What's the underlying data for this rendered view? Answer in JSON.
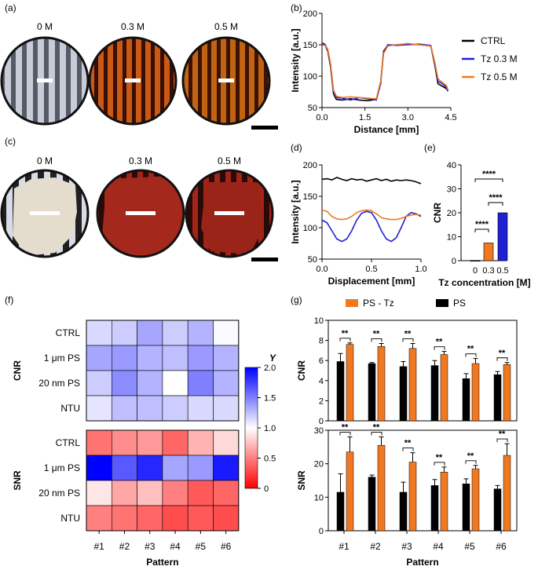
{
  "panels": {
    "a": {
      "label": "(a)",
      "disc_labels": [
        "0 M",
        "0.3 M",
        "0.5 M"
      ]
    },
    "b": {
      "label": "(b)"
    },
    "c": {
      "label": "(c)",
      "disc_labels": [
        "0 M",
        "0.3 M",
        "0.5 M"
      ]
    },
    "d": {
      "label": "(d)"
    },
    "e": {
      "label": "(e)"
    },
    "f": {
      "label": "(f)"
    },
    "g": {
      "label": "(g)"
    }
  },
  "colors": {
    "ctrl": "#000000",
    "tz03": "#1f1fd6",
    "tz05": "#f07820",
    "ps": "#000000",
    "pstz": "#f07820"
  },
  "chart_data": [
    {
      "id": "b",
      "type": "line",
      "xlabel": "Distance [mm]",
      "ylabel": "Intensity [a.u.]",
      "xlim": [
        0,
        4.5
      ],
      "ylim": [
        50,
        200
      ],
      "xticks": [
        "0.0",
        "1.5",
        "3.0",
        "4.5"
      ],
      "yticks": [
        "50",
        "100",
        "150",
        "200"
      ],
      "x": [
        0,
        0.1,
        0.2,
        0.3,
        0.4,
        0.5,
        0.7,
        1.0,
        1.3,
        1.6,
        1.9,
        2.05,
        2.15,
        2.3,
        2.6,
        3.0,
        3.4,
        3.8,
        3.95,
        4.05,
        4.2,
        4.35,
        4.4
      ],
      "series": [
        {
          "name": "CTRL",
          "values": [
            152,
            150,
            140,
            115,
            72,
            63,
            62,
            64,
            62,
            61,
            63,
            90,
            140,
            149,
            150,
            151,
            150,
            148,
            115,
            88,
            84,
            80,
            76
          ]
        },
        {
          "name": "Tz 0.3 M",
          "values": [
            153,
            151,
            142,
            118,
            75,
            66,
            65,
            62,
            66,
            64,
            62,
            88,
            138,
            150,
            149,
            150,
            151,
            149,
            118,
            92,
            88,
            82,
            76
          ]
        },
        {
          "name": "Tz 0.5 M",
          "values": [
            150,
            149,
            143,
            120,
            78,
            68,
            66,
            67,
            66,
            65,
            64,
            92,
            136,
            148,
            150,
            152,
            150,
            148,
            120,
            96,
            90,
            85,
            78
          ]
        }
      ],
      "legend": [
        "CTRL",
        "Tz 0.3 M",
        "Tz 0.5 M"
      ]
    },
    {
      "id": "d",
      "type": "line",
      "xlabel": "Displacement [mm]",
      "ylabel": "Intensity [a.u.]",
      "xlim": [
        0,
        1
      ],
      "ylim": [
        50,
        200
      ],
      "xticks": [
        "0.0",
        "0.5",
        "1.0"
      ],
      "yticks": [
        "50",
        "100",
        "150",
        "200"
      ],
      "x": [
        0,
        0.05,
        0.1,
        0.15,
        0.2,
        0.25,
        0.3,
        0.35,
        0.4,
        0.45,
        0.5,
        0.55,
        0.6,
        0.65,
        0.7,
        0.75,
        0.8,
        0.85,
        0.9,
        0.95,
        1.0
      ],
      "series": [
        {
          "name": "CTRL",
          "values": [
            177,
            178,
            176,
            180,
            177,
            175,
            178,
            176,
            177,
            174,
            176,
            178,
            175,
            177,
            174,
            176,
            175,
            176,
            175,
            173,
            170
          ]
        },
        {
          "name": "Tz 0.3 M",
          "values": [
            112,
            108,
            95,
            82,
            78,
            82,
            95,
            112,
            123,
            126,
            124,
            112,
            95,
            82,
            78,
            84,
            100,
            118,
            124,
            122,
            118
          ]
        },
        {
          "name": "Tz 0.5 M",
          "values": [
            128,
            126,
            118,
            114,
            113,
            114,
            118,
            124,
            127,
            128,
            127,
            122,
            116,
            114,
            113,
            113,
            115,
            118,
            120,
            121,
            120
          ]
        }
      ]
    },
    {
      "id": "e",
      "type": "bar",
      "xlabel": "Tz concentration [M]",
      "ylabel": "CNR",
      "ylim": [
        0,
        40
      ],
      "yticks": [
        "0",
        "10",
        "20",
        "30",
        "40"
      ],
      "categories": [
        "0",
        "0.3",
        "0.5"
      ],
      "values": [
        0.1,
        7.4,
        20
      ],
      "annotations": [
        "****",
        "****",
        "****"
      ]
    },
    {
      "id": "f",
      "type": "heatmap",
      "xlabel": "Pattern",
      "xticks": [
        "#1",
        "#2",
        "#3",
        "#4",
        "#5",
        "#6"
      ],
      "colorbar_title": "Y",
      "colorbar_ticks": [
        "0",
        "0.5",
        "1.0",
        "1.5",
        "2.0"
      ],
      "colorbar_range": [
        0,
        2
      ],
      "cnr": {
        "ylabel": "CNR",
        "rows": [
          "CTRL",
          "1 μm PS",
          "20 nm PS",
          "NTU"
        ],
        "values": [
          [
            1.15,
            1.2,
            1.35,
            1.2,
            1.3,
            1.02
          ],
          [
            1.35,
            1.4,
            1.3,
            1.25,
            1.4,
            1.3
          ],
          [
            1.2,
            1.45,
            1.3,
            1.0,
            1.5,
            1.3
          ],
          [
            1.1,
            1.25,
            1.25,
            1.2,
            1.15,
            1.15
          ]
        ]
      },
      "snr": {
        "ylabel": "SNR",
        "rows": [
          "CTRL",
          "1 μm PS",
          "20 nm PS",
          "NTU"
        ],
        "values": [
          [
            0.45,
            0.55,
            0.6,
            0.4,
            0.7,
            0.85
          ],
          [
            2.0,
            1.65,
            1.85,
            1.35,
            1.4,
            1.9
          ],
          [
            0.9,
            0.65,
            0.75,
            0.5,
            0.35,
            0.4
          ],
          [
            0.5,
            0.45,
            0.4,
            0.3,
            0.35,
            0.3
          ]
        ]
      }
    },
    {
      "id": "g",
      "type": "bar",
      "xlabel": "Pattern",
      "categories": [
        "#1",
        "#2",
        "#3",
        "#4",
        "#5",
        "#6"
      ],
      "legend": [
        "PS - Tz",
        "PS"
      ],
      "cnr": {
        "ylabel": "CNR",
        "ylim": [
          0,
          10
        ],
        "yticks": [
          "0",
          "2",
          "4",
          "6",
          "8",
          "10"
        ],
        "series": [
          {
            "name": "PS",
            "values": [
              5.9,
              5.7,
              5.4,
              5.5,
              4.2,
              4.6
            ],
            "errors": [
              0.8,
              0.1,
              0.5,
              0.5,
              0.5,
              0.3
            ]
          },
          {
            "name": "PS - Tz",
            "values": [
              7.6,
              7.4,
              7.2,
              6.6,
              5.7,
              5.6
            ],
            "errors": [
              0.15,
              0.3,
              0.5,
              0.3,
              0.5,
              0.2
            ]
          }
        ],
        "annotations": [
          "**",
          "**",
          "**",
          "**",
          "**",
          "**"
        ]
      },
      "snr": {
        "ylabel": "SNR",
        "ylim": [
          0,
          30
        ],
        "yticks": [
          "0",
          "10",
          "20",
          "30"
        ],
        "series": [
          {
            "name": "PS",
            "values": [
              11.5,
              16,
              11.5,
              13.5,
              14,
              12.5
            ],
            "errors": [
              5.5,
              0.6,
              3.0,
              1.8,
              1.5,
              1.0
            ]
          },
          {
            "name": "PS - Tz",
            "values": [
              23.5,
              25.5,
              20.5,
              17.5,
              18.5,
              22.5
            ],
            "errors": [
              4.5,
              2.5,
              2.8,
              1.5,
              1.0,
              3.5
            ]
          }
        ],
        "annotations": [
          "**",
          "**",
          "**",
          "**",
          "**",
          "**"
        ]
      }
    }
  ]
}
